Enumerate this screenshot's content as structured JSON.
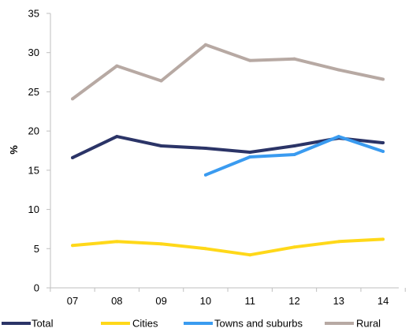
{
  "chart_data": {
    "type": "line",
    "title": "",
    "xlabel": "",
    "ylabel": "%",
    "ylim": [
      0,
      35
    ],
    "yticks": [
      0,
      5,
      10,
      15,
      20,
      25,
      30,
      35
    ],
    "grid": false,
    "legend_position": "bottom",
    "categories": [
      "07",
      "08",
      "09",
      "10",
      "11",
      "12",
      "13",
      "14"
    ],
    "series": [
      {
        "name": "Total",
        "color": "#2b3467",
        "values": [
          16.6,
          19.3,
          18.1,
          17.8,
          17.3,
          18.1,
          19.1,
          18.5
        ]
      },
      {
        "name": "Cities",
        "color": "#ffd819",
        "values": [
          5.4,
          5.9,
          5.6,
          5.0,
          4.2,
          5.2,
          5.9,
          6.2
        ]
      },
      {
        "name": "Towns and suburbs",
        "color": "#3a9bf0",
        "values": [
          null,
          null,
          null,
          14.4,
          16.7,
          17.0,
          19.3,
          17.4
        ]
      },
      {
        "name": "Rural",
        "color": "#b7a9a3",
        "values": [
          24.1,
          28.3,
          26.4,
          31.0,
          29.0,
          29.2,
          27.8,
          26.6
        ]
      }
    ]
  }
}
